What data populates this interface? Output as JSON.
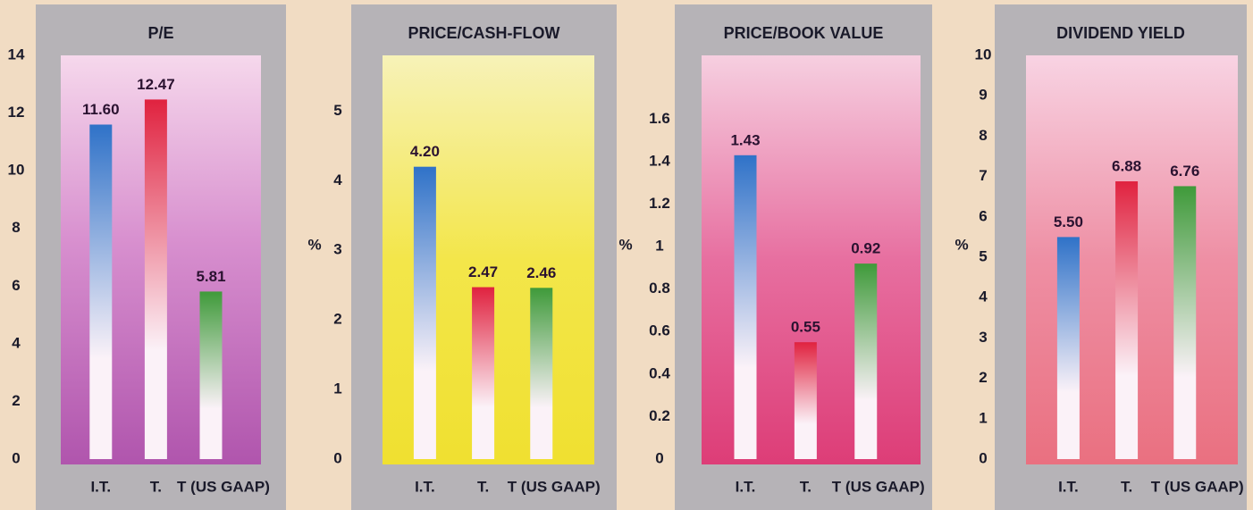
{
  "chart_data": [
    {
      "type": "bar",
      "title": "P/E",
      "categories": [
        "I.T.",
        "T.",
        "T (US GAAP)"
      ],
      "values": [
        11.6,
        12.47,
        5.81
      ],
      "value_labels": [
        "11.60",
        "12.47",
        "5.81"
      ],
      "colors": [
        "#2f72c8",
        "#e0223f",
        "#3f9a3a"
      ],
      "ylim": [
        0,
        14
      ],
      "yticks": [
        0,
        2,
        4,
        6,
        8,
        10,
        12,
        14
      ]
    },
    {
      "type": "bar",
      "title": "PRICE/CASH-FLOW",
      "y_label": "%",
      "categories": [
        "I.T.",
        "T.",
        "T (US GAAP)"
      ],
      "values": [
        4.2,
        2.47,
        2.46
      ],
      "value_labels": [
        "4.20",
        "2.47",
        "2.46"
      ],
      "colors": [
        "#2f72c8",
        "#e0223f",
        "#3f9a3a"
      ],
      "ylim": [
        0,
        5.8
      ],
      "yticks": [
        0,
        1,
        2,
        3,
        4,
        5
      ]
    },
    {
      "type": "bar",
      "title": "PRICE/BOOK VALUE",
      "y_label": "%",
      "categories": [
        "I.T.",
        "T.",
        "T (US GAAP)"
      ],
      "values": [
        1.43,
        0.55,
        0.92
      ],
      "value_labels": [
        "1.43",
        "0.55",
        "0.92"
      ],
      "colors": [
        "#2f72c8",
        "#e0223f",
        "#3f9a3a"
      ],
      "ylim": [
        0,
        1.9
      ],
      "yticks": [
        0,
        0.2,
        0.4,
        0.6,
        0.8,
        1,
        1.2,
        1.4,
        1.6
      ]
    },
    {
      "type": "bar",
      "title": "DIVIDEND YIELD",
      "y_label": "%",
      "categories": [
        "I.T.",
        "T.",
        "T (US GAAP)"
      ],
      "values": [
        5.5,
        6.88,
        6.76
      ],
      "value_labels": [
        "5.50",
        "6.88",
        "6.76"
      ],
      "colors": [
        "#2f72c8",
        "#e0223f",
        "#3f9a3a"
      ],
      "ylim": [
        0,
        10
      ],
      "yticks": [
        0,
        1,
        2,
        3,
        4,
        5,
        6,
        7,
        8,
        9,
        10
      ]
    }
  ]
}
